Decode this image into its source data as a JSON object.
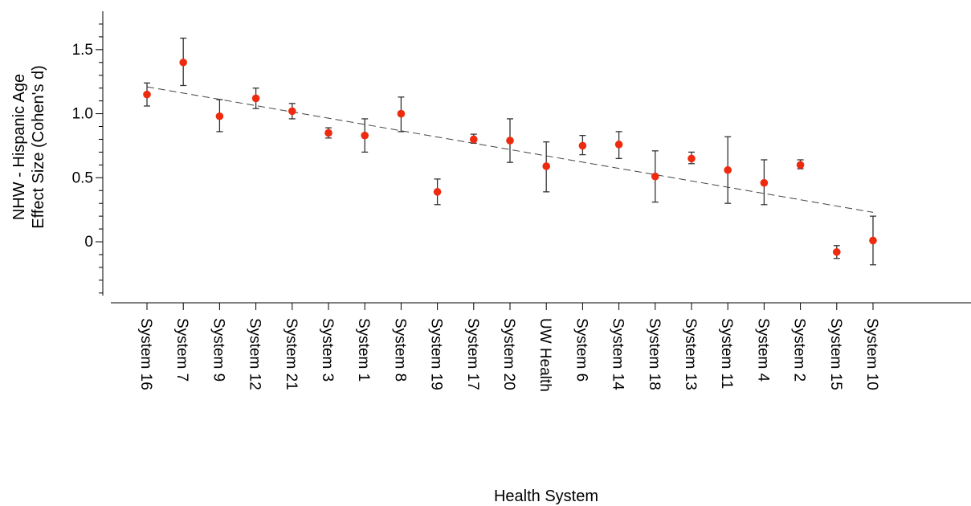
{
  "chart_data": {
    "type": "scatter",
    "title": "",
    "xlabel": "Health System",
    "ylabel_lines": [
      "NHW - Hispanic Age",
      "Effect Size (Cohen's d)"
    ],
    "ylim": [
      -0.42,
      1.8
    ],
    "yticks": [
      0,
      0.5,
      1.0,
      1.5
    ],
    "ytick_labels": [
      "0",
      "0.5",
      "1.0",
      "1.5"
    ],
    "grid": false,
    "legend": "none",
    "marker_color": "#ee2a0f",
    "errorbar_color": "#333333",
    "trendline": {
      "style": "dashed",
      "color": "#444444",
      "start": 1.21,
      "end": 0.23
    },
    "categories": [
      "System 16",
      "System 7",
      "System 9",
      "System 12",
      "System 21",
      "System 3",
      "System 1",
      "System 8",
      "System 19",
      "System 17",
      "System 20",
      "UW Health",
      "System 6",
      "System 14",
      "System 18",
      "System 13",
      "System 11",
      "System 4",
      "System 2",
      "System 15",
      "System 10"
    ],
    "values": [
      1.15,
      1.4,
      0.98,
      1.12,
      1.02,
      0.85,
      0.83,
      1.0,
      0.39,
      0.8,
      0.79,
      0.59,
      0.75,
      0.76,
      0.51,
      0.65,
      0.56,
      0.46,
      0.6,
      -0.08,
      0.01
    ],
    "err_low": [
      1.06,
      1.22,
      0.86,
      1.04,
      0.96,
      0.81,
      0.7,
      0.86,
      0.29,
      0.77,
      0.62,
      0.39,
      0.68,
      0.65,
      0.31,
      0.61,
      0.3,
      0.29,
      0.57,
      -0.13,
      -0.18
    ],
    "err_high": [
      1.24,
      1.59,
      1.11,
      1.2,
      1.08,
      0.89,
      0.96,
      1.13,
      0.49,
      0.84,
      0.96,
      0.78,
      0.83,
      0.86,
      0.71,
      0.7,
      0.82,
      0.64,
      0.64,
      -0.03,
      0.2
    ]
  }
}
